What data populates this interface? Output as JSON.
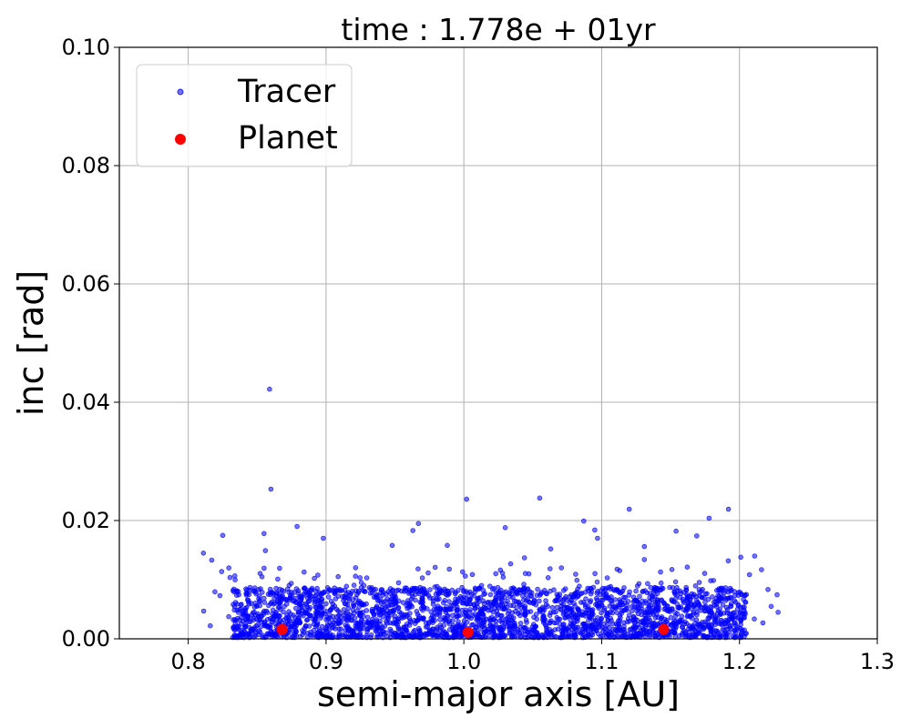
{
  "chart_data": {
    "type": "scatter",
    "title": "time : 1.778e + 01yr",
    "xlabel": "semi-major axis [AU]",
    "ylabel": "inc [rad]",
    "xlim": [
      0.75,
      1.3
    ],
    "ylim": [
      0.0,
      0.1
    ],
    "xticks": [
      "0.8",
      "0.9",
      "1.0",
      "1.1",
      "1.2",
      "1.3"
    ],
    "xtick_values": [
      0.8,
      0.9,
      1.0,
      1.1,
      1.2,
      1.3
    ],
    "yticks": [
      "0.00",
      "0.02",
      "0.04",
      "0.06",
      "0.08",
      "0.10"
    ],
    "ytick_values": [
      0.0,
      0.02,
      0.04,
      0.06,
      0.08,
      0.1
    ],
    "grid": true,
    "legend_position": "top-left",
    "series": [
      {
        "name": "Tracer",
        "color": "#0000ff",
        "marker": "small-circle",
        "approx_count": 2500,
        "x_range": [
          0.81,
          1.23
        ],
        "typical_y_range": [
          0.0,
          0.01
        ],
        "points": [
          [
            0.859,
            0.0422
          ],
          [
            0.86,
            0.0253
          ],
          [
            1.002,
            0.0236
          ],
          [
            1.055,
            0.0238
          ],
          [
            1.12,
            0.0219
          ],
          [
            1.192,
            0.0219
          ],
          [
            1.178,
            0.0204
          ],
          [
            0.967,
            0.0195
          ],
          [
            1.087,
            0.0199
          ],
          [
            0.879,
            0.019
          ],
          [
            1.03,
            0.0188
          ],
          [
            0.963,
            0.0183
          ],
          [
            1.095,
            0.0184
          ],
          [
            1.154,
            0.0182
          ],
          [
            0.855,
            0.0178
          ],
          [
            0.825,
            0.0175
          ],
          [
            0.898,
            0.017
          ],
          [
            1.097,
            0.017
          ],
          [
            1.169,
            0.0174
          ],
          [
            0.811,
            0.0145
          ],
          [
            0.856,
            0.0149
          ],
          [
            0.948,
            0.0158
          ],
          [
            0.988,
            0.0158
          ],
          [
            1.063,
            0.0152
          ],
          [
            1.131,
            0.0156
          ],
          [
            1.211,
            0.014
          ],
          [
            1.201,
            0.0138
          ],
          [
            1.131,
            0.0134
          ],
          [
            1.044,
            0.0137
          ],
          [
            0.817,
            0.0133
          ],
          [
            1.216,
            0.0117
          ],
          [
            1.223,
            0.0055
          ],
          [
            1.228,
            0.0045
          ],
          [
            1.217,
            0.0027
          ],
          [
            0.816,
            0.0022
          ],
          [
            0.823,
            0.0073
          ]
        ]
      },
      {
        "name": "Planet",
        "color": "#ff0000",
        "marker": "circle",
        "points": [
          [
            0.868,
            0.0016
          ],
          [
            1.003,
            0.0011
          ],
          [
            1.145,
            0.0016
          ]
        ]
      }
    ]
  }
}
